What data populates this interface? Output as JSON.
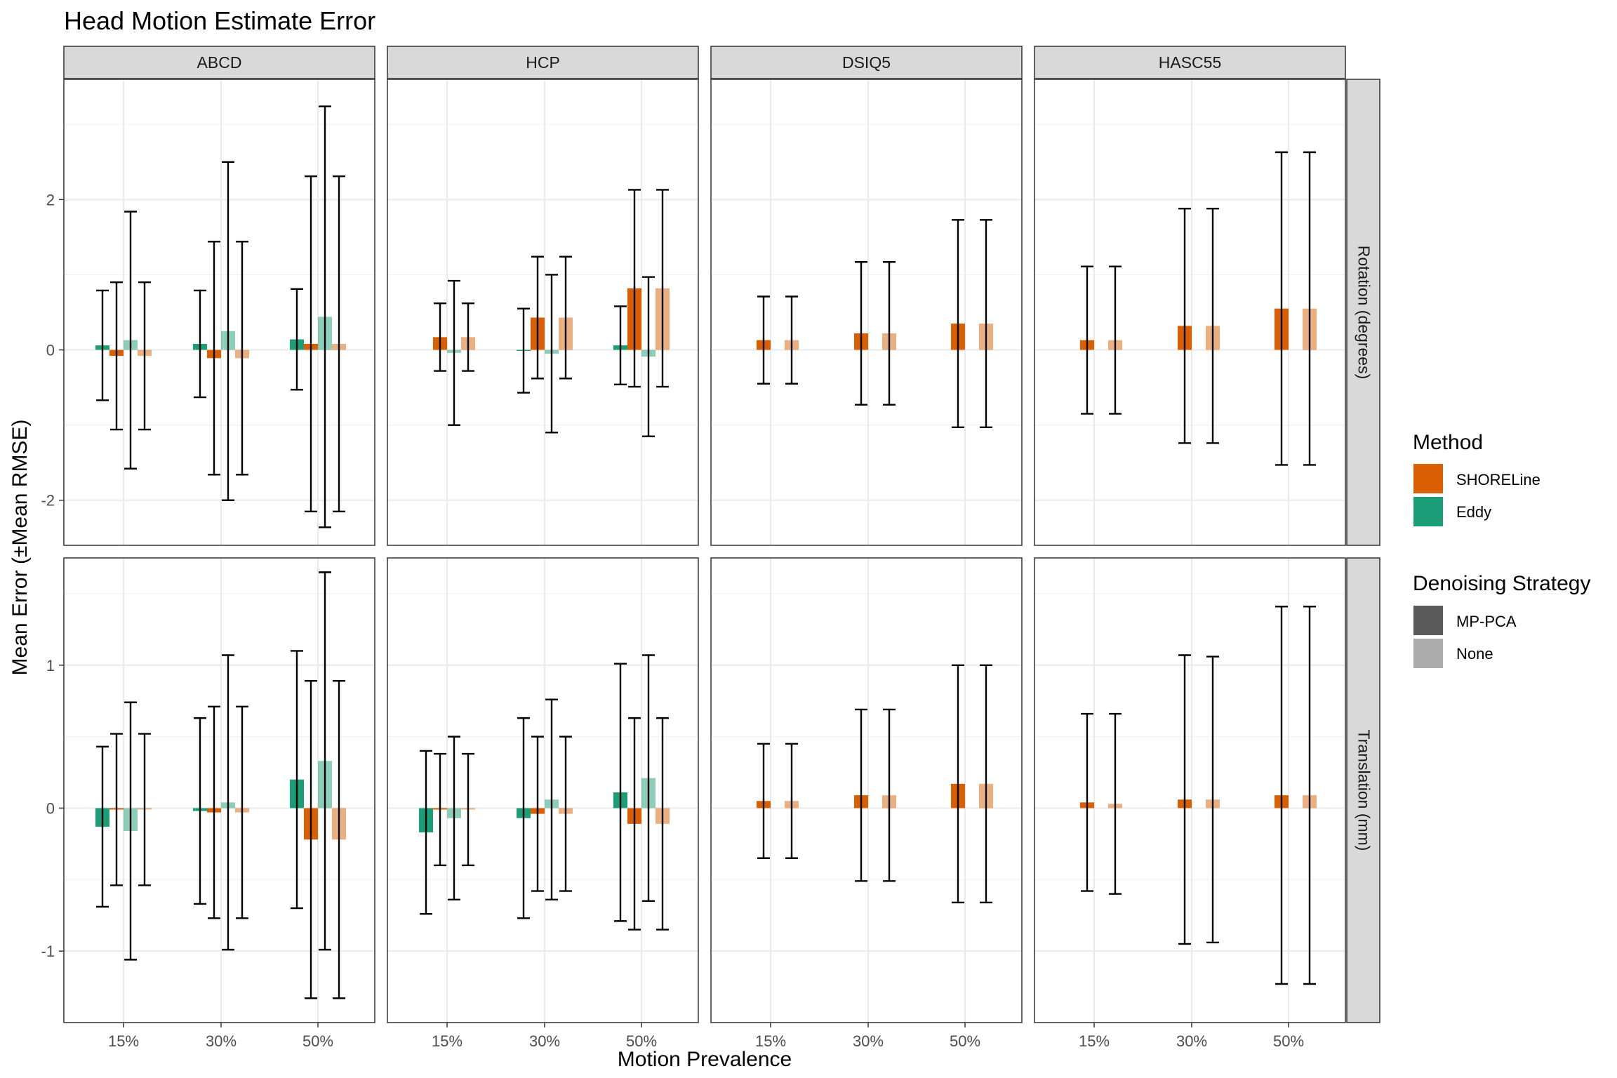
{
  "chart_data": {
    "type": "bar",
    "title": "Head Motion Estimate Error",
    "xlabel": "Motion Prevalence",
    "ylabel": "Mean Error (±Mean RMSE)",
    "categories": [
      "15%",
      "30%",
      "50%"
    ],
    "datasets": [
      "ABCD",
      "HCP",
      "DSIQ5",
      "HASC55"
    ],
    "metrics": [
      {
        "name": "Rotation (degrees)",
        "ylim": [
          -2.6,
          3.6
        ],
        "ticks": [
          -2,
          0,
          2
        ],
        "tick_labels": [
          "-2",
          "0",
          "2"
        ]
      },
      {
        "name": "Translation (mm)",
        "ylim": [
          -1.5,
          1.75
        ],
        "ticks": [
          -1,
          0,
          1
        ],
        "tick_labels": [
          "-1",
          "0",
          "1"
        ]
      }
    ],
    "grid": true,
    "legend_position": "right",
    "legend": {
      "method_title": "Method",
      "methods": [
        {
          "name": "SHORELine",
          "color": "#d95f02"
        },
        {
          "name": "Eddy",
          "color": "#1b9e77"
        }
      ],
      "strategy_title": "Denoising Strategy",
      "strategies": [
        {
          "name": "MP-PCA",
          "color": "#595959"
        },
        {
          "name": "None",
          "color": "#ababab"
        }
      ]
    },
    "bar_order": [
      {
        "method": "Eddy",
        "strategy": "MP-PCA"
      },
      {
        "method": "SHORELine",
        "strategy": "MP-PCA"
      },
      {
        "method": "Eddy",
        "strategy": "None"
      },
      {
        "method": "SHORELine",
        "strategy": "None"
      }
    ],
    "panels": [
      {
        "dataset": "ABCD",
        "metric": "Rotation (degrees)",
        "groups": [
          [
            {
              "m": 0.06,
              "e": 0.73
            },
            {
              "m": -0.08,
              "e": 0.98
            },
            {
              "m": 0.13,
              "e": 1.71
            },
            {
              "m": -0.08,
              "e": 0.98
            }
          ],
          [
            {
              "m": 0.08,
              "e": 0.71
            },
            {
              "m": -0.11,
              "e": 1.55
            },
            {
              "m": 0.25,
              "e": 2.25
            },
            {
              "m": -0.11,
              "e": 1.55
            }
          ],
          [
            {
              "m": 0.14,
              "e": 0.67
            },
            {
              "m": 0.08,
              "e": 2.23
            },
            {
              "m": 0.44,
              "e": 2.8
            },
            {
              "m": 0.08,
              "e": 2.23
            }
          ]
        ]
      },
      {
        "dataset": "HCP",
        "metric": "Rotation (degrees)",
        "groups": [
          [
            null,
            {
              "m": 0.17,
              "e": 0.45
            },
            {
              "m": -0.04,
              "e": 0.96
            },
            {
              "m": 0.17,
              "e": 0.45
            }
          ],
          [
            {
              "m": -0.01,
              "e": 0.56
            },
            {
              "m": 0.43,
              "e": 0.81
            },
            {
              "m": -0.05,
              "e": 1.05
            },
            {
              "m": 0.43,
              "e": 0.81
            }
          ],
          [
            {
              "m": 0.06,
              "e": 0.52
            },
            {
              "m": 0.82,
              "e": 1.31
            },
            {
              "m": -0.09,
              "e": 1.06
            },
            {
              "m": 0.82,
              "e": 1.31
            }
          ]
        ]
      },
      {
        "dataset": "DSIQ5",
        "metric": "Rotation (degrees)",
        "groups": [
          [
            null,
            {
              "m": 0.13,
              "e": 0.58
            },
            null,
            {
              "m": 0.13,
              "e": 0.58
            }
          ],
          [
            null,
            {
              "m": 0.22,
              "e": 0.95
            },
            null,
            {
              "m": 0.22,
              "e": 0.95
            }
          ],
          [
            null,
            {
              "m": 0.35,
              "e": 1.38
            },
            null,
            {
              "m": 0.35,
              "e": 1.38
            }
          ]
        ]
      },
      {
        "dataset": "HASC55",
        "metric": "Rotation (degrees)",
        "groups": [
          [
            null,
            {
              "m": 0.13,
              "e": 0.98
            },
            null,
            {
              "m": 0.13,
              "e": 0.98
            }
          ],
          [
            null,
            {
              "m": 0.32,
              "e": 1.56
            },
            null,
            {
              "m": 0.32,
              "e": 1.56
            }
          ],
          [
            null,
            {
              "m": 0.55,
              "e": 2.08
            },
            null,
            {
              "m": 0.55,
              "e": 2.08
            }
          ]
        ]
      },
      {
        "dataset": "ABCD",
        "metric": "Translation (mm)",
        "groups": [
          [
            {
              "m": -0.13,
              "e": 0.56
            },
            {
              "m": -0.01,
              "e": 0.53
            },
            {
              "m": -0.16,
              "e": 0.9
            },
            {
              "m": -0.01,
              "e": 0.53
            }
          ],
          [
            {
              "m": -0.02,
              "e": 0.65
            },
            {
              "m": -0.03,
              "e": 0.74
            },
            {
              "m": 0.04,
              "e": 1.03
            },
            {
              "m": -0.03,
              "e": 0.74
            }
          ],
          [
            {
              "m": 0.2,
              "e": 0.9
            },
            {
              "m": -0.22,
              "e": 1.11
            },
            {
              "m": 0.33,
              "e": 1.32
            },
            {
              "m": -0.22,
              "e": 1.11
            }
          ]
        ]
      },
      {
        "dataset": "HCP",
        "metric": "Translation (mm)",
        "groups": [
          [
            {
              "m": -0.17,
              "e": 0.57
            },
            {
              "m": -0.01,
              "e": 0.39
            },
            {
              "m": -0.07,
              "e": 0.57
            },
            {
              "m": -0.01,
              "e": 0.39
            }
          ],
          [
            {
              "m": -0.07,
              "e": 0.7
            },
            {
              "m": -0.04,
              "e": 0.54
            },
            {
              "m": 0.06,
              "e": 0.7
            },
            {
              "m": -0.04,
              "e": 0.54
            }
          ],
          [
            {
              "m": 0.11,
              "e": 0.9
            },
            {
              "m": -0.11,
              "e": 0.74
            },
            {
              "m": 0.21,
              "e": 0.86
            },
            {
              "m": -0.11,
              "e": 0.74
            }
          ]
        ]
      },
      {
        "dataset": "DSIQ5",
        "metric": "Translation (mm)",
        "groups": [
          [
            null,
            {
              "m": 0.05,
              "e": 0.4
            },
            null,
            {
              "m": 0.05,
              "e": 0.4
            }
          ],
          [
            null,
            {
              "m": 0.09,
              "e": 0.6
            },
            null,
            {
              "m": 0.09,
              "e": 0.6
            }
          ],
          [
            null,
            {
              "m": 0.17,
              "e": 0.83
            },
            null,
            {
              "m": 0.17,
              "e": 0.83
            }
          ]
        ]
      },
      {
        "dataset": "HASC55",
        "metric": "Translation (mm)",
        "groups": [
          [
            null,
            {
              "m": 0.04,
              "e": 0.62
            },
            null,
            {
              "m": 0.03,
              "e": 0.63
            }
          ],
          [
            null,
            {
              "m": 0.06,
              "e": 1.01
            },
            null,
            {
              "m": 0.06,
              "e": 1.0
            }
          ],
          [
            null,
            {
              "m": 0.09,
              "e": 1.32
            },
            null,
            {
              "m": 0.09,
              "e": 1.32
            }
          ]
        ]
      }
    ]
  }
}
